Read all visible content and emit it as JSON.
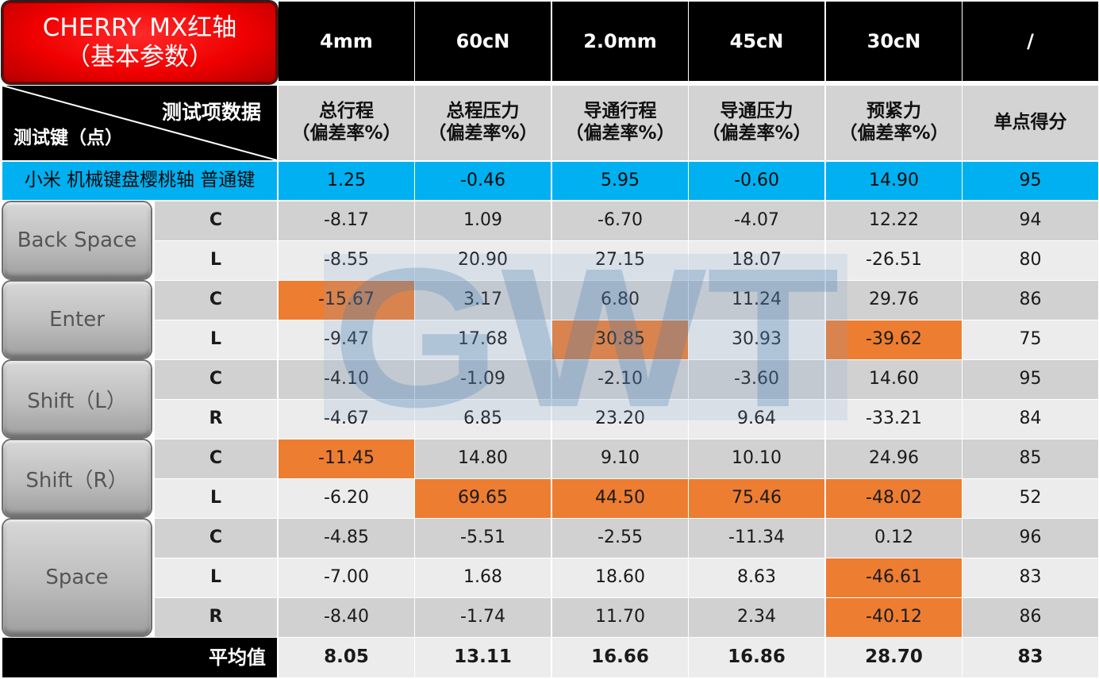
{
  "title": {
    "line1": "CHERRY MX红轴",
    "line2": "（基本参数）"
  },
  "corner": {
    "top_right": "测试项数据",
    "bottom_left": "测试键（点）"
  },
  "spec_values": [
    "4mm",
    "60cN",
    "2.0mm",
    "45cN",
    "30cN",
    "/"
  ],
  "column_headers": [
    {
      "line1": "总行程",
      "line2": "（偏差率%）"
    },
    {
      "line1": "总程压力",
      "line2": "（偏差率%）"
    },
    {
      "line1": "导通行程",
      "line2": "（偏差率%）"
    },
    {
      "line1": "导通压力",
      "line2": "（偏差率%）"
    },
    {
      "line1": "预紧力",
      "line2": "（偏差率%）"
    },
    {
      "line1": "单点得分",
      "line2": ""
    }
  ],
  "product": {
    "name": "小米 机械键盘樱桃轴 普通键",
    "values": [
      "1.25",
      "-0.46",
      "5.95",
      "-0.60",
      "14.90",
      "95"
    ]
  },
  "key_groups": [
    {
      "key": "Back Space",
      "rows": [
        {
          "point": "C",
          "values": [
            "-8.17",
            "1.09",
            "-6.70",
            "-4.07",
            "12.22",
            "94"
          ],
          "highlight": []
        },
        {
          "point": "L",
          "values": [
            "-8.55",
            "20.90",
            "27.15",
            "18.07",
            "-26.51",
            "80"
          ],
          "highlight": []
        }
      ]
    },
    {
      "key": "Enter",
      "rows": [
        {
          "point": "C",
          "values": [
            "-15.67",
            "3.17",
            "6.80",
            "11.24",
            "29.76",
            "86"
          ],
          "highlight": [
            0
          ]
        },
        {
          "point": "L",
          "values": [
            "-9.47",
            "17.68",
            "30.85",
            "30.93",
            "-39.62",
            "75"
          ],
          "highlight": [
            2,
            4
          ]
        }
      ]
    },
    {
      "key": "Shift（L）",
      "rows": [
        {
          "point": "C",
          "values": [
            "-4.10",
            "-1.09",
            "-2.10",
            "-3.60",
            "14.60",
            "95"
          ],
          "highlight": []
        },
        {
          "point": "R",
          "values": [
            "-4.67",
            "6.85",
            "23.20",
            "9.64",
            "-33.21",
            "84"
          ],
          "highlight": []
        }
      ]
    },
    {
      "key": "Shift（R）",
      "rows": [
        {
          "point": "C",
          "values": [
            "-11.45",
            "14.80",
            "9.10",
            "10.10",
            "24.96",
            "85"
          ],
          "highlight": [
            0
          ]
        },
        {
          "point": "L",
          "values": [
            "-6.20",
            "69.65",
            "44.50",
            "75.46",
            "-48.02",
            "52"
          ],
          "highlight": [
            1,
            2,
            3,
            4
          ]
        }
      ]
    },
    {
      "key": "Space",
      "rows": [
        {
          "point": "C",
          "values": [
            "-4.85",
            "-5.51",
            "-2.55",
            "-11.34",
            "0.12",
            "96"
          ],
          "highlight": []
        },
        {
          "point": "L",
          "values": [
            "-7.00",
            "1.68",
            "18.60",
            "8.63",
            "-46.61",
            "83"
          ],
          "highlight": [
            4
          ]
        },
        {
          "point": "R",
          "values": [
            "-8.40",
            "-1.74",
            "11.70",
            "2.34",
            "-40.12",
            "86"
          ],
          "highlight": [
            4
          ]
        }
      ]
    }
  ],
  "average": {
    "label": "平均值",
    "values": [
      "8.05",
      "13.11",
      "16.66",
      "16.86",
      "28.70",
      "83"
    ]
  },
  "watermark": "GWT",
  "colors": {
    "header": "#000000",
    "product_row": "#00b0f0",
    "highlight": "#ed7d31",
    "title_box": "#f00000",
    "row_dark": "#d1d1d1",
    "row_light": "#ececec"
  },
  "chart_data": {
    "type": "table",
    "columns": [
      "总行程（偏差率%）",
      "总程压力（偏差率%）",
      "导通行程（偏差率%）",
      "导通压力（偏差率%）",
      "预紧力（偏差率%）",
      "单点得分"
    ],
    "spec": [
      "4mm",
      "60cN",
      "2.0mm",
      "45cN",
      "30cN",
      "/"
    ],
    "rows": [
      {
        "label": "小米 机械键盘樱桃轴 普通键",
        "values": [
          1.25,
          -0.46,
          5.95,
          -0.6,
          14.9,
          95
        ]
      },
      {
        "label": "Back Space C",
        "values": [
          -8.17,
          1.09,
          -6.7,
          -4.07,
          12.22,
          94
        ]
      },
      {
        "label": "Back Space L",
        "values": [
          -8.55,
          20.9,
          27.15,
          18.07,
          -26.51,
          80
        ]
      },
      {
        "label": "Enter C",
        "values": [
          -15.67,
          3.17,
          6.8,
          11.24,
          29.76,
          86
        ]
      },
      {
        "label": "Enter L",
        "values": [
          -9.47,
          17.68,
          30.85,
          30.93,
          -39.62,
          75
        ]
      },
      {
        "label": "Shift（L） C",
        "values": [
          -4.1,
          -1.09,
          -2.1,
          -3.6,
          14.6,
          95
        ]
      },
      {
        "label": "Shift（L） R",
        "values": [
          -4.67,
          6.85,
          23.2,
          9.64,
          -33.21,
          84
        ]
      },
      {
        "label": "Shift（R） C",
        "values": [
          -11.45,
          14.8,
          9.1,
          10.1,
          24.96,
          85
        ]
      },
      {
        "label": "Shift（R） L",
        "values": [
          -6.2,
          69.65,
          44.5,
          75.46,
          -48.02,
          52
        ]
      },
      {
        "label": "Space C",
        "values": [
          -4.85,
          -5.51,
          -2.55,
          -11.34,
          0.12,
          96
        ]
      },
      {
        "label": "Space L",
        "values": [
          -7.0,
          1.68,
          18.6,
          8.63,
          -46.61,
          83
        ]
      },
      {
        "label": "Space R",
        "values": [
          -8.4,
          -1.74,
          11.7,
          2.34,
          -40.12,
          86
        ]
      },
      {
        "label": "平均值",
        "values": [
          8.05,
          13.11,
          16.66,
          16.86,
          28.7,
          83
        ]
      }
    ]
  }
}
